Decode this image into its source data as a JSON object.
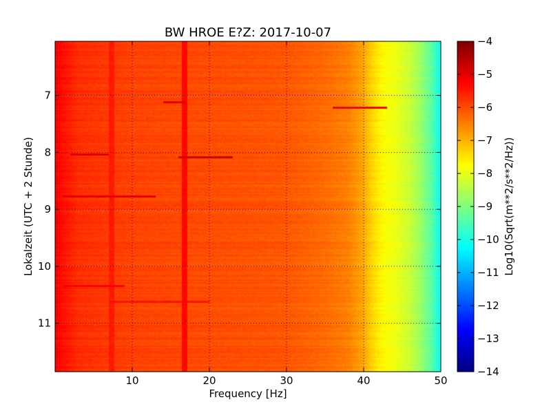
{
  "chart_data": {
    "type": "heatmap",
    "title": "BW HROE E?Z: 2017-10-07",
    "xlabel": "Frequency [Hz]",
    "ylabel": "Lokalzeit (UTC + 2 Stunde)",
    "xlim": [
      0,
      50
    ],
    "ylim": [
      6.05,
      11.85
    ],
    "y_inverted": true,
    "x_ticks": [
      10,
      20,
      30,
      40,
      50
    ],
    "y_ticks": [
      7,
      8,
      9,
      10,
      11
    ],
    "grid": true,
    "colormap": "jet",
    "colorbar": {
      "label": "Log10(Sqrt(m**2/s**2/Hz))",
      "range": [
        -14,
        -4
      ],
      "ticks": [
        -4,
        -5,
        -6,
        -7,
        -8,
        -9,
        -10,
        -11,
        -12,
        -13,
        -14
      ]
    },
    "spectrum_profile": {
      "frequency": [
        0,
        1,
        3,
        10,
        20,
        30,
        35,
        38,
        40,
        41,
        42,
        43,
        44,
        45,
        46,
        47,
        48,
        49,
        50
      ],
      "level": [
        -5.2,
        -5.4,
        -5.7,
        -5.9,
        -6.0,
        -6.1,
        -6.3,
        -6.5,
        -6.9,
        -7.3,
        -7.6,
        -7.8,
        -7.9,
        -8.1,
        -8.3,
        -8.6,
        -9.0,
        -9.5,
        -10.2
      ]
    },
    "features": [
      {
        "type": "hband",
        "time": 7.12,
        "f": [
          14,
          17
        ],
        "level": -5.0
      },
      {
        "type": "hband",
        "time": 7.22,
        "f": [
          36,
          43
        ],
        "level": -5.1
      },
      {
        "type": "hband",
        "time": 8.04,
        "f": [
          2,
          7
        ],
        "level": -4.9
      },
      {
        "type": "hband",
        "time": 8.09,
        "f": [
          16,
          23
        ],
        "level": -4.8
      },
      {
        "type": "hband",
        "time": 8.78,
        "f": [
          1,
          13
        ],
        "level": -5.0
      },
      {
        "type": "hband",
        "time": 10.35,
        "f": [
          1,
          9
        ],
        "level": -5.2
      },
      {
        "type": "hband",
        "time": 10.62,
        "f": [
          7,
          20
        ],
        "level": -5.4
      },
      {
        "type": "vband",
        "freq": 16.8,
        "level": -5.3
      },
      {
        "type": "vband",
        "freq": 7.3,
        "level": -5.5
      }
    ]
  }
}
